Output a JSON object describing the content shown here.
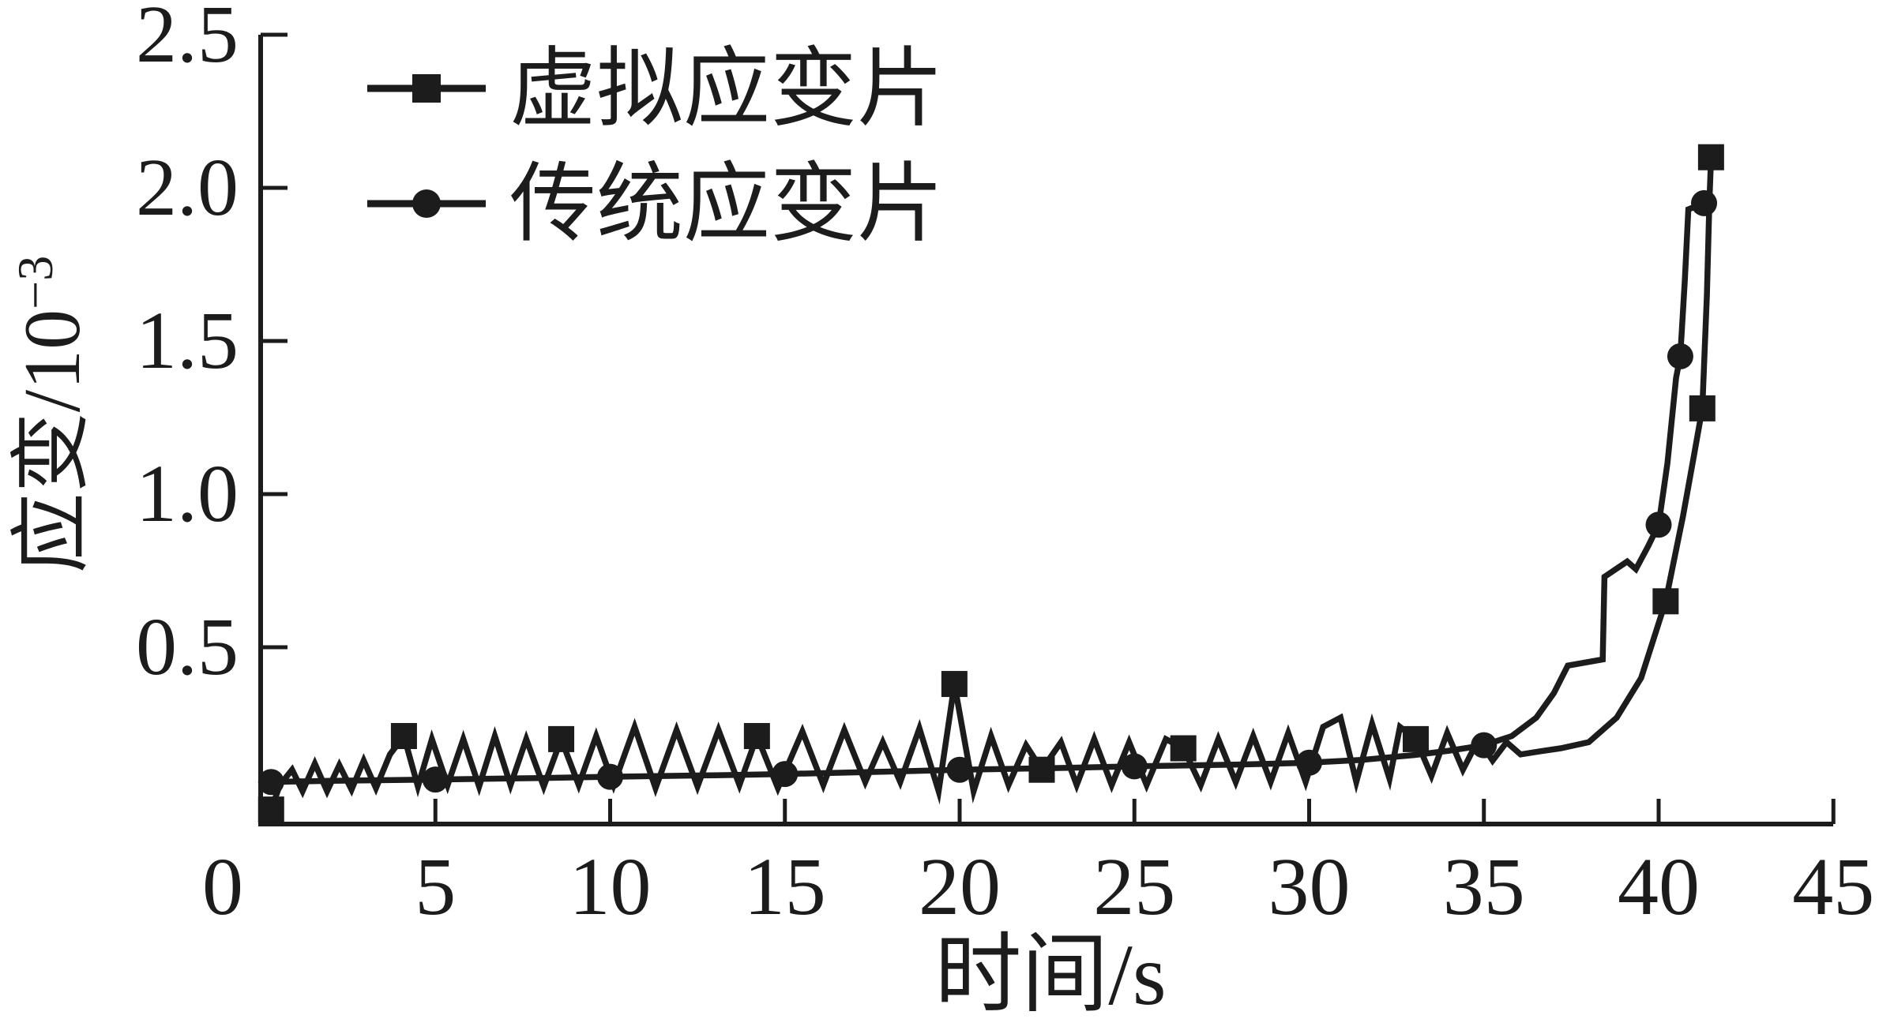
{
  "figure": {
    "background": "#ffffff",
    "line_color": "#1c1c1c"
  },
  "chart_data": {
    "type": "line",
    "title": "",
    "xlabel": "时间/s",
    "ylabel": "应变/10⁻³",
    "ylabel_parts": {
      "base": "应变/10",
      "exponent": "−3"
    },
    "xlim": [
      0,
      45
    ],
    "ylim": [
      -0.077,
      2.5
    ],
    "grid": false,
    "legend_position": "top-left-inside",
    "x_ticks": [
      0,
      5,
      10,
      15,
      20,
      25,
      30,
      35,
      40,
      45
    ],
    "x_tick_labels": [
      "0",
      "5",
      "10",
      "15",
      "20",
      "25",
      "30",
      "35",
      "40",
      "45"
    ],
    "y_ticks": [
      0.5,
      1.0,
      1.5,
      2.0,
      2.5
    ],
    "y_tick_labels": [
      "0.5",
      "1.0",
      "1.5",
      "2.0",
      "2.5"
    ],
    "series": [
      {
        "name": "虚拟应变片",
        "marker": "square",
        "line": [
          [
            0.3,
            -0.03
          ],
          [
            0.55,
            0.05
          ],
          [
            0.9,
            0.1
          ],
          [
            1.2,
            0.03
          ],
          [
            1.55,
            0.12
          ],
          [
            1.9,
            0.03
          ],
          [
            2.25,
            0.115
          ],
          [
            2.6,
            0.035
          ],
          [
            2.95,
            0.13
          ],
          [
            3.3,
            0.04
          ],
          [
            3.7,
            0.15
          ],
          [
            4.1,
            0.21
          ],
          [
            4.5,
            0.045
          ],
          [
            4.9,
            0.2
          ],
          [
            5.35,
            0.05
          ],
          [
            5.8,
            0.2
          ],
          [
            6.25,
            0.045
          ],
          [
            6.7,
            0.21
          ],
          [
            7.15,
            0.05
          ],
          [
            7.6,
            0.2
          ],
          [
            8.1,
            0.045
          ],
          [
            8.6,
            0.2
          ],
          [
            9.1,
            0.05
          ],
          [
            9.6,
            0.21
          ],
          [
            10.1,
            0.05
          ],
          [
            10.7,
            0.24
          ],
          [
            11.3,
            0.04
          ],
          [
            11.9,
            0.23
          ],
          [
            12.5,
            0.045
          ],
          [
            13.1,
            0.23
          ],
          [
            13.7,
            0.05
          ],
          [
            14.2,
            0.21
          ],
          [
            14.8,
            0.04
          ],
          [
            15.5,
            0.225
          ],
          [
            16.1,
            0.05
          ],
          [
            16.7,
            0.23
          ],
          [
            17.3,
            0.06
          ],
          [
            17.8,
            0.19
          ],
          [
            18.3,
            0.06
          ],
          [
            18.85,
            0.235
          ],
          [
            19.4,
            0.03
          ],
          [
            19.85,
            0.38
          ],
          [
            20.4,
            0.03
          ],
          [
            20.9,
            0.21
          ],
          [
            21.4,
            0.05
          ],
          [
            21.9,
            0.18
          ],
          [
            22.35,
            0.1
          ],
          [
            22.9,
            0.19
          ],
          [
            23.35,
            0.05
          ],
          [
            23.85,
            0.2
          ],
          [
            24.35,
            0.05
          ],
          [
            24.85,
            0.19
          ],
          [
            25.35,
            0.05
          ],
          [
            25.9,
            0.2
          ],
          [
            26.4,
            0.17
          ],
          [
            26.9,
            0.05
          ],
          [
            27.4,
            0.2
          ],
          [
            27.9,
            0.06
          ],
          [
            28.4,
            0.21
          ],
          [
            28.9,
            0.06
          ],
          [
            29.4,
            0.22
          ],
          [
            29.9,
            0.06
          ],
          [
            30.4,
            0.24
          ],
          [
            30.9,
            0.27
          ],
          [
            31.35,
            0.06
          ],
          [
            31.8,
            0.25
          ],
          [
            32.3,
            0.07
          ],
          [
            32.6,
            0.24
          ],
          [
            33.05,
            0.2
          ],
          [
            33.5,
            0.08
          ],
          [
            33.95,
            0.22
          ],
          [
            34.4,
            0.1
          ],
          [
            34.85,
            0.2
          ],
          [
            35.25,
            0.13
          ],
          [
            35.65,
            0.19
          ],
          [
            36.05,
            0.15
          ],
          [
            36.6,
            0.16
          ],
          [
            37.2,
            0.17
          ],
          [
            38.0,
            0.19
          ],
          [
            38.8,
            0.27
          ],
          [
            39.5,
            0.4
          ],
          [
            40.2,
            0.65
          ],
          [
            40.7,
            0.93
          ],
          [
            41.0,
            1.12
          ],
          [
            41.25,
            1.28
          ],
          [
            41.38,
            1.65
          ],
          [
            41.45,
            1.95
          ],
          [
            41.5,
            2.1
          ]
        ],
        "markers": [
          [
            0.3,
            -0.03
          ],
          [
            4.1,
            0.21
          ],
          [
            8.6,
            0.2
          ],
          [
            14.2,
            0.21
          ],
          [
            19.85,
            0.38
          ],
          [
            22.35,
            0.1
          ],
          [
            26.4,
            0.17
          ],
          [
            33.05,
            0.2
          ],
          [
            40.2,
            0.65
          ],
          [
            41.25,
            1.28
          ],
          [
            41.5,
            2.1
          ]
        ]
      },
      {
        "name": "传统应变片",
        "marker": "circle",
        "line": [
          [
            0.3,
            0.06
          ],
          [
            2,
            0.064
          ],
          [
            5,
            0.068
          ],
          [
            8,
            0.073
          ],
          [
            10,
            0.077
          ],
          [
            13,
            0.082
          ],
          [
            15,
            0.086
          ],
          [
            18,
            0.094
          ],
          [
            20,
            0.1
          ],
          [
            23,
            0.106
          ],
          [
            25,
            0.111
          ],
          [
            28,
            0.117
          ],
          [
            30,
            0.123
          ],
          [
            31.5,
            0.132
          ],
          [
            33,
            0.148
          ],
          [
            34,
            0.162
          ],
          [
            35,
            0.18
          ],
          [
            35.8,
            0.21
          ],
          [
            36.5,
            0.27
          ],
          [
            37.0,
            0.35
          ],
          [
            37.4,
            0.44
          ],
          [
            38.4,
            0.46
          ],
          [
            38.45,
            0.73
          ],
          [
            39.1,
            0.78
          ],
          [
            39.35,
            0.755
          ],
          [
            39.7,
            0.83
          ],
          [
            40.0,
            0.9
          ],
          [
            40.25,
            1.1
          ],
          [
            40.5,
            1.38
          ],
          [
            40.62,
            1.45
          ],
          [
            40.75,
            1.7
          ],
          [
            40.85,
            1.93
          ],
          [
            41.3,
            1.95
          ]
        ],
        "markers": [
          [
            0.3,
            0.06
          ],
          [
            5,
            0.068
          ],
          [
            10,
            0.077
          ],
          [
            15,
            0.086
          ],
          [
            20,
            0.1
          ],
          [
            25,
            0.111
          ],
          [
            30,
            0.123
          ],
          [
            35,
            0.18
          ],
          [
            40.0,
            0.9
          ],
          [
            40.62,
            1.45
          ],
          [
            41.3,
            1.95
          ]
        ]
      }
    ]
  }
}
